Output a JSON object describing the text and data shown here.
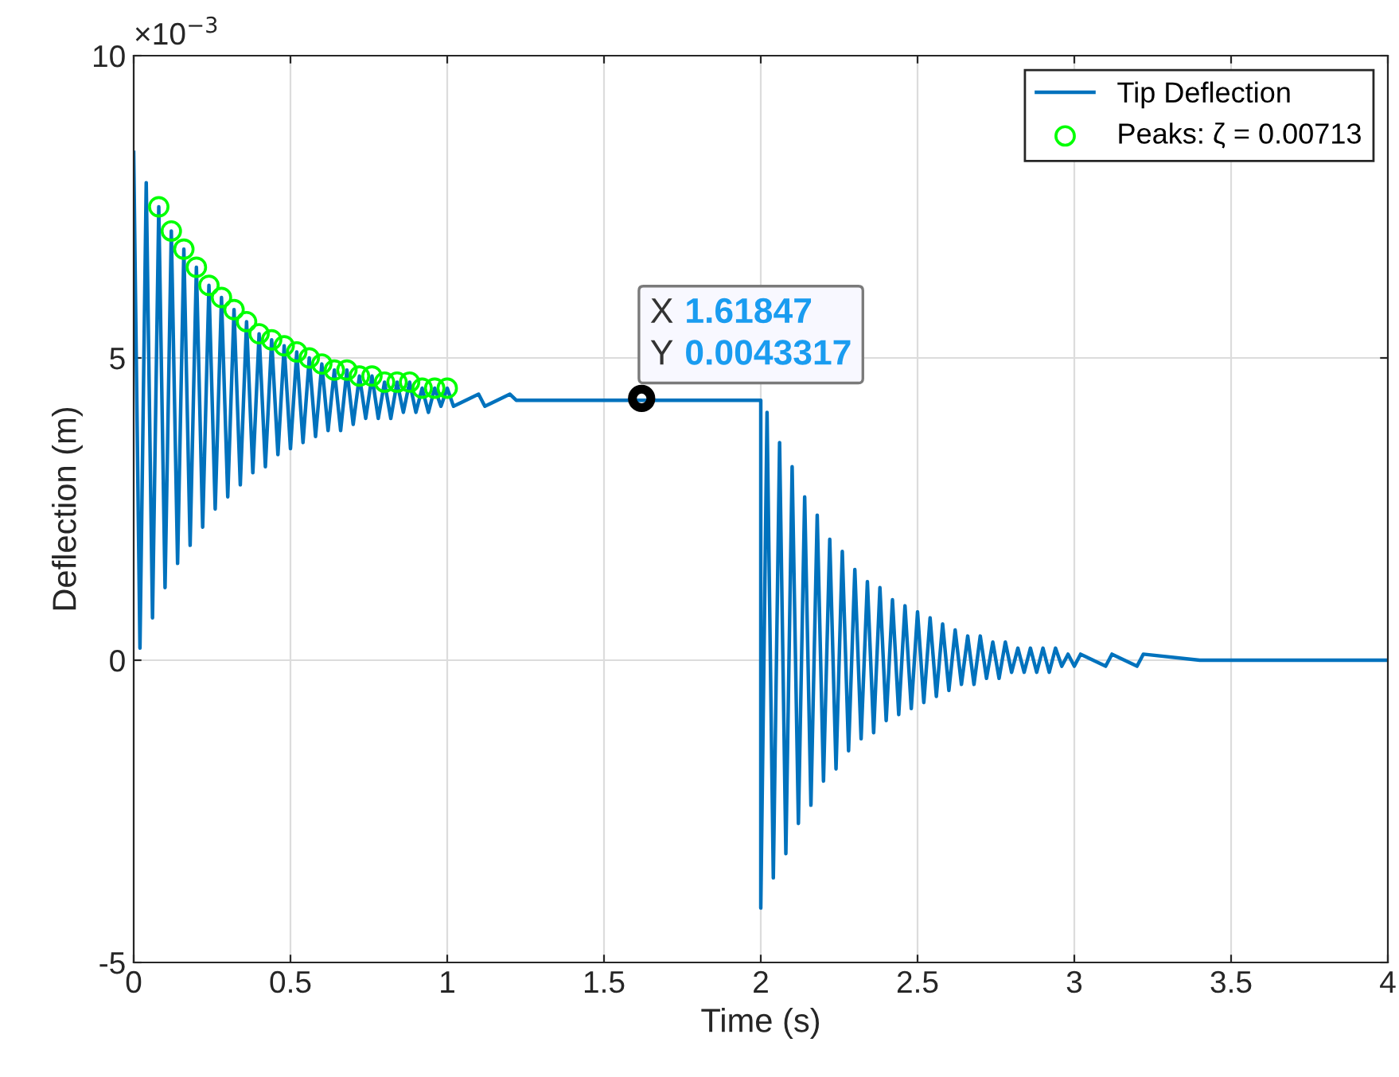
{
  "chart_data": {
    "type": "line",
    "xlabel": "Time (s)",
    "ylabel": "Deflection (m)",
    "xlim": [
      0,
      4
    ],
    "xticks": [
      0,
      0.5,
      1,
      1.5,
      2,
      2.5,
      3,
      3.5,
      4
    ],
    "ylim": [
      -5,
      10
    ],
    "yticks": [
      -5,
      0,
      5,
      10
    ],
    "grid": true,
    "legend": "top right",
    "annotations": [
      "×10$^{−3}$",
      {
        "text": "X 1.61847\nY 0.0043317",
        "x": 1.61847,
        "y": 4.33
      }
    ],
    "series": [
      {
        "name": "Tip Deflection",
        "color": "#0072bd",
        "marker": "none",
        "line_style": "solid",
        "x": [
          0,
          0.02,
          0.04,
          0.06,
          0.08,
          0.1,
          0.12,
          0.14,
          0.16,
          0.18,
          0.2,
          0.22,
          0.24,
          0.26,
          0.28,
          0.3,
          0.32,
          0.34,
          0.36,
          0.38,
          0.4,
          0.42,
          0.44,
          0.46,
          0.48,
          0.5,
          0.52,
          0.54,
          0.56,
          0.58,
          0.6,
          0.62,
          0.64,
          0.66,
          0.68,
          0.7,
          0.72,
          0.74,
          0.76,
          0.78,
          0.8,
          0.82,
          0.84,
          0.86,
          0.88,
          0.9,
          0.92,
          0.94,
          0.96,
          0.98,
          1.0,
          1.02,
          1.1,
          1.12,
          1.2,
          1.22,
          1.3,
          2.0,
          2.0,
          2.02,
          2.04,
          2.06,
          2.08,
          2.1,
          2.12,
          2.14,
          2.16,
          2.18,
          2.2,
          2.22,
          2.24,
          2.26,
          2.28,
          2.3,
          2.32,
          2.34,
          2.36,
          2.38,
          2.4,
          2.42,
          2.44,
          2.46,
          2.48,
          2.5,
          2.52,
          2.54,
          2.56,
          2.58,
          2.6,
          2.62,
          2.64,
          2.66,
          2.68,
          2.7,
          2.72,
          2.74,
          2.76,
          2.78,
          2.8,
          2.82,
          2.84,
          2.86,
          2.88,
          2.9,
          2.92,
          2.94,
          2.96,
          2.98,
          3.0,
          3.02,
          3.1,
          3.12,
          3.2,
          3.22,
          3.4,
          3.42,
          4.0
        ],
        "values": [
          8.4,
          0.2,
          7.9,
          0.7,
          7.5,
          1.2,
          7.1,
          1.6,
          6.8,
          1.9,
          6.5,
          2.2,
          6.2,
          2.5,
          6.0,
          2.7,
          5.8,
          2.9,
          5.6,
          3.1,
          5.4,
          3.2,
          5.3,
          3.4,
          5.2,
          3.5,
          5.1,
          3.6,
          5.0,
          3.7,
          4.9,
          3.8,
          4.8,
          3.8,
          4.8,
          3.9,
          4.7,
          4.0,
          4.7,
          4.0,
          4.6,
          4.0,
          4.6,
          4.1,
          4.6,
          4.1,
          4.5,
          4.1,
          4.5,
          4.2,
          4.5,
          4.2,
          4.4,
          4.2,
          4.4,
          4.3,
          4.3,
          4.3,
          -4.1,
          4.1,
          -3.6,
          3.6,
          -3.2,
          3.2,
          -2.7,
          2.7,
          -2.4,
          2.4,
          -2.0,
          2.0,
          -1.8,
          1.8,
          -1.5,
          1.5,
          -1.3,
          1.3,
          -1.2,
          1.2,
          -1.0,
          1.0,
          -0.9,
          0.9,
          -0.8,
          0.8,
          -0.7,
          0.7,
          -0.6,
          0.6,
          -0.5,
          0.5,
          -0.4,
          0.4,
          -0.4,
          0.4,
          -0.3,
          0.3,
          -0.3,
          0.3,
          -0.2,
          0.2,
          -0.2,
          0.2,
          -0.2,
          0.2,
          -0.2,
          0.2,
          -0.1,
          0.1,
          -0.1,
          0.1,
          -0.1,
          0.1,
          -0.1,
          0.1,
          0,
          0,
          0
        ]
      },
      {
        "name": "Peaks: ζ = 0.00713",
        "type": "scatter",
        "color": "#00ff00",
        "marker": "circle",
        "x": [
          0.08,
          0.12,
          0.16,
          0.2,
          0.24,
          0.28,
          0.32,
          0.36,
          0.4,
          0.44,
          0.48,
          0.52,
          0.56,
          0.6,
          0.64,
          0.68,
          0.72,
          0.76,
          0.8,
          0.84,
          0.88,
          0.92,
          0.96,
          1.0
        ],
        "values": [
          7.5,
          7.1,
          6.8,
          6.5,
          6.2,
          6.0,
          5.8,
          5.6,
          5.4,
          5.3,
          5.2,
          5.1,
          5.0,
          4.9,
          4.8,
          4.8,
          4.7,
          4.7,
          4.6,
          4.6,
          4.6,
          4.5,
          4.5,
          4.5
        ]
      },
      {
        "type": "scatter",
        "color": "#000000",
        "marker": "circle",
        "x": [
          1.62
        ],
        "values": [
          4.33
        ]
      }
    ]
  }
}
